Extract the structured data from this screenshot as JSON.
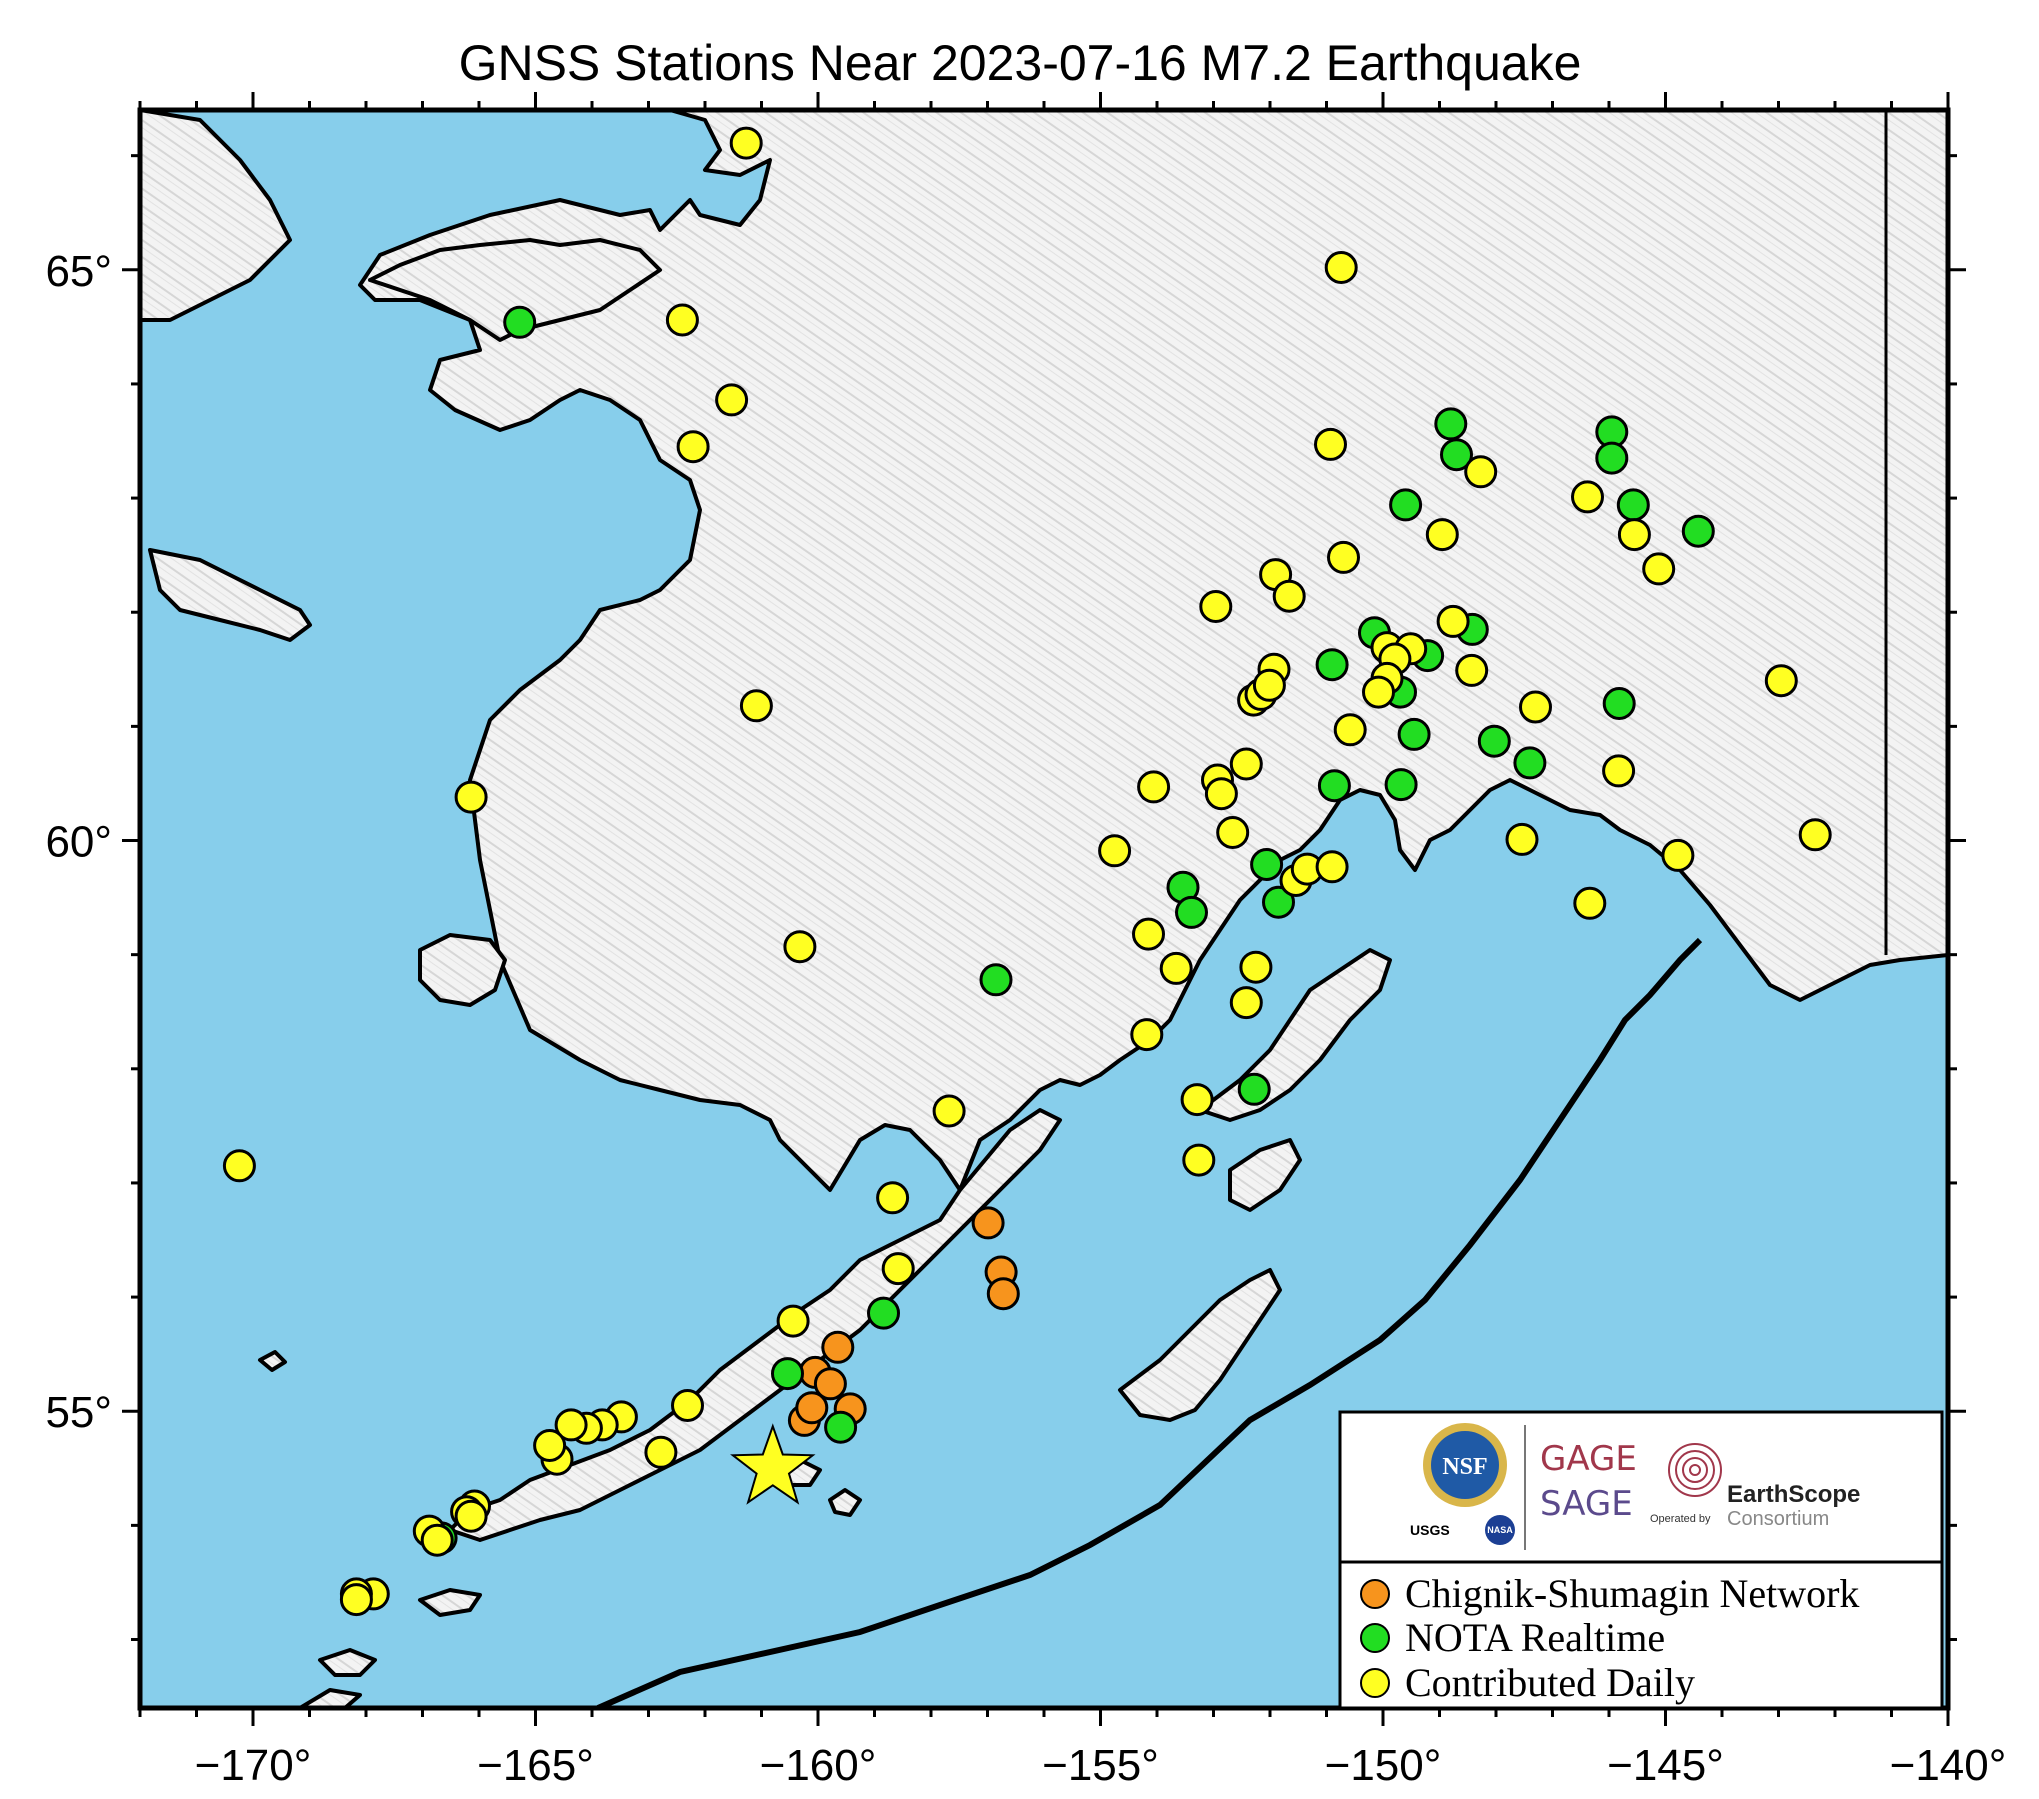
{
  "title": "GNSS Stations Near 2023-07-16 M7.2 Earthquake",
  "map": {
    "lon_range": [
      -172,
      -140
    ],
    "lat_range": [
      52.4,
      66.4
    ],
    "colors": {
      "ocean": "#87ceeb",
      "land": "#f0f0f0",
      "coast": "#000000",
      "trench": "#000000",
      "chignik": "#f7941d",
      "nota": "#22dd22",
      "contributed": "#ffff22",
      "epicenter": "#ffff22"
    },
    "lon_ticks": [
      {
        "value": -170,
        "label": "−170°"
      },
      {
        "value": -165,
        "label": "−165°"
      },
      {
        "value": -160,
        "label": "−160°"
      },
      {
        "value": -155,
        "label": "−155°"
      },
      {
        "value": -150,
        "label": "−150°"
      },
      {
        "value": -145,
        "label": "−145°"
      },
      {
        "value": -140,
        "label": "−140°"
      }
    ],
    "lat_ticks": [
      {
        "value": 65,
        "label": "65°"
      },
      {
        "value": 60,
        "label": "60°"
      },
      {
        "value": 55,
        "label": "55°"
      }
    ],
    "epicenter": {
      "lon": -160.8,
      "lat": 54.5,
      "symbol": "star"
    }
  },
  "legend": {
    "entries": [
      {
        "label": "Chignik-Shumagin Network",
        "color": "#f7941d"
      },
      {
        "label": "NOTA Realtime",
        "color": "#22dd22"
      },
      {
        "label": "Contributed Daily",
        "color": "#ffff22"
      }
    ]
  },
  "logos": {
    "nsf": "NSF",
    "usgs": "USGS",
    "nasa": "NASA",
    "gage": "GAGE",
    "sage": "SAGE",
    "operated_by": "Operated by",
    "earthscope": "EarthScope",
    "consortium": "Consortium"
  },
  "stations": {
    "chignik": [
      [
        -156.99,
        56.65
      ],
      [
        -156.76,
        56.22
      ],
      [
        -156.72,
        56.03
      ],
      [
        -159.65,
        55.56
      ],
      [
        -160.05,
        55.34
      ],
      [
        -159.78,
        55.24
      ],
      [
        -160.24,
        54.92
      ],
      [
        -159.43,
        55.02
      ],
      [
        -160.11,
        55.03
      ]
    ],
    "nota": [
      [
        -165.28,
        64.54
      ],
      [
        -149.6,
        62.94
      ],
      [
        -148.8,
        63.65
      ],
      [
        -148.7,
        63.38
      ],
      [
        -145.95,
        63.58
      ],
      [
        -145.95,
        63.35
      ],
      [
        -145.57,
        62.94
      ],
      [
        -144.42,
        62.71
      ],
      [
        -150.15,
        61.82
      ],
      [
        -148.42,
        61.85
      ],
      [
        -149.21,
        61.62
      ],
      [
        -150.9,
        61.54
      ],
      [
        -149.69,
        61.3
      ],
      [
        -149.45,
        60.93
      ],
      [
        -148.03,
        60.87
      ],
      [
        -145.82,
        61.2
      ],
      [
        -147.4,
        60.68
      ],
      [
        -150.86,
        60.48
      ],
      [
        -149.68,
        60.49
      ],
      [
        -152.06,
        59.79
      ],
      [
        -151.85,
        59.46
      ],
      [
        -153.54,
        59.59
      ],
      [
        -153.39,
        59.37
      ],
      [
        -156.85,
        58.78
      ],
      [
        -152.28,
        57.82
      ],
      [
        -158.84,
        55.86
      ],
      [
        -160.54,
        55.33
      ],
      [
        -159.6,
        54.86
      ],
      [
        -166.67,
        53.89
      ]
    ],
    "contributed": [
      [
        -161.27,
        66.11
      ],
      [
        -162.4,
        64.56
      ],
      [
        -161.53,
        63.86
      ],
      [
        -162.21,
        63.45
      ],
      [
        -150.74,
        65.02
      ],
      [
        -150.93,
        63.47
      ],
      [
        -148.27,
        63.23
      ],
      [
        -146.38,
        63.01
      ],
      [
        -148.95,
        62.68
      ],
      [
        -150.7,
        62.48
      ],
      [
        -145.55,
        62.68
      ],
      [
        -145.12,
        62.38
      ],
      [
        -151.9,
        62.33
      ],
      [
        -152.96,
        62.05
      ],
      [
        -151.66,
        62.14
      ],
      [
        -148.76,
        61.92
      ],
      [
        -149.93,
        61.69
      ],
      [
        -149.51,
        61.68
      ],
      [
        -149.79,
        61.59
      ],
      [
        -149.93,
        61.42
      ],
      [
        -148.43,
        61.49
      ],
      [
        -151.93,
        61.5
      ],
      [
        -152.29,
        61.23
      ],
      [
        -152.16,
        61.28
      ],
      [
        -152.01,
        61.36
      ],
      [
        -150.08,
        61.3
      ],
      [
        -147.3,
        61.17
      ],
      [
        -150.58,
        60.97
      ],
      [
        -152.93,
        60.53
      ],
      [
        -152.42,
        60.67
      ],
      [
        -152.86,
        60.41
      ],
      [
        -154.06,
        60.47
      ],
      [
        -152.66,
        60.07
      ],
      [
        -154.75,
        59.91
      ],
      [
        -145.83,
        60.61
      ],
      [
        -142.95,
        61.4
      ],
      [
        -142.35,
        60.05
      ],
      [
        -144.78,
        59.87
      ],
      [
        -147.54,
        60.01
      ],
      [
        -146.34,
        59.45
      ],
      [
        -151.54,
        59.65
      ],
      [
        -151.34,
        59.75
      ],
      [
        -150.9,
        59.77
      ],
      [
        -154.15,
        59.18
      ],
      [
        -153.66,
        58.88
      ],
      [
        -152.25,
        58.89
      ],
      [
        -152.42,
        58.58
      ],
      [
        -154.18,
        58.3
      ],
      [
        -153.29,
        57.73
      ],
      [
        -153.26,
        57.2
      ],
      [
        -161.09,
        61.18
      ],
      [
        -166.14,
        60.38
      ],
      [
        -160.32,
        59.07
      ],
      [
        -170.24,
        57.15
      ],
      [
        -157.68,
        57.63
      ],
      [
        -158.68,
        56.87
      ],
      [
        -158.58,
        56.25
      ],
      [
        -160.44,
        55.79
      ],
      [
        -162.31,
        55.05
      ],
      [
        -162.78,
        54.64
      ],
      [
        -163.48,
        54.95
      ],
      [
        -163.82,
        54.88
      ],
      [
        -164.1,
        54.85
      ],
      [
        -164.37,
        54.88
      ],
      [
        -164.62,
        54.58
      ],
      [
        -164.75,
        54.7
      ],
      [
        -166.08,
        54.17
      ],
      [
        -166.22,
        54.12
      ],
      [
        -166.14,
        54.08
      ],
      [
        -166.88,
        53.95
      ],
      [
        -166.74,
        53.87
      ],
      [
        -167.87,
        53.4
      ],
      [
        -168.17,
        53.4
      ],
      [
        -168.17,
        53.35
      ]
    ]
  }
}
